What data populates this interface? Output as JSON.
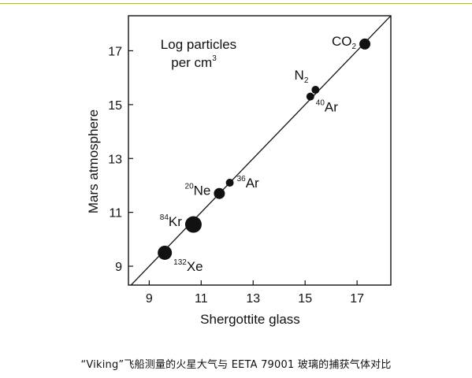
{
  "caption": "“Viking”飞船测量的火星大气与 EETA 79001 玻璃的捕获气体对比",
  "chart_data": {
    "type": "scatter",
    "xlabel": "Shergottite glass",
    "ylabel": "Mars atmosphere",
    "annotation": {
      "line1": "Log particles",
      "line2": "per cm",
      "line2_sup": "3"
    },
    "xlim": [
      8.2,
      18.3
    ],
    "ylim": [
      8.3,
      18.3
    ],
    "xticks": [
      9,
      11,
      13,
      15,
      17
    ],
    "yticks": [
      9,
      11,
      13,
      15,
      17
    ],
    "trend_line": {
      "x": [
        8.2,
        18.3
      ],
      "y": [
        8.2,
        18.3
      ]
    },
    "points": [
      {
        "species": "132Xe",
        "mass": "132",
        "name": "Xe",
        "sub": "",
        "x": 9.6,
        "y": 9.5,
        "size": "large",
        "label_side": "below-right"
      },
      {
        "species": "84Kr",
        "mass": "84",
        "name": "Kr",
        "sub": "",
        "x": 10.7,
        "y": 10.55,
        "size": "xlarge",
        "label_side": "left"
      },
      {
        "species": "20Ne",
        "mass": "20",
        "name": "Ne",
        "sub": "",
        "x": 11.7,
        "y": 11.7,
        "size": "medium",
        "label_side": "left"
      },
      {
        "species": "36Ar",
        "mass": "36",
        "name": "Ar",
        "sub": "",
        "x": 12.1,
        "y": 12.1,
        "size": "small",
        "label_side": "right"
      },
      {
        "species": "40Ar",
        "mass": "40",
        "name": "Ar",
        "sub": "",
        "x": 15.2,
        "y": 15.3,
        "size": "small",
        "label_side": "below-right"
      },
      {
        "species": "N2",
        "mass": "",
        "name": "N",
        "sub": "2",
        "x": 15.4,
        "y": 15.55,
        "size": "small",
        "label_side": "above-left"
      },
      {
        "species": "CO2",
        "mass": "",
        "name": "CO",
        "sub": "2",
        "x": 17.3,
        "y": 17.25,
        "size": "medium",
        "label_side": "left"
      }
    ]
  }
}
